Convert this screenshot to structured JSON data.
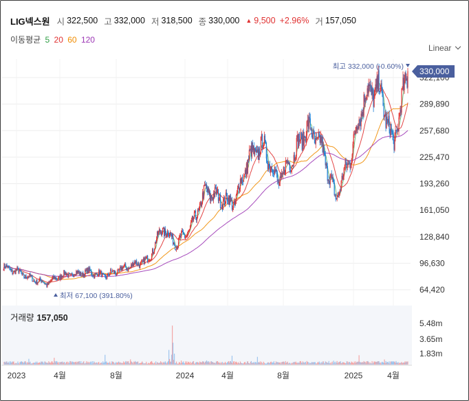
{
  "header": {
    "name": "LIG넥스원",
    "open_label": "시",
    "open": "322,500",
    "high_label": "고",
    "high": "332,000",
    "low_label": "저",
    "low": "318,500",
    "close_label": "종",
    "close": "330,000",
    "change_arrow": "▲",
    "change": "9,500",
    "change_pct": "+2.96%",
    "volume_label": "거",
    "volume": "157,050"
  },
  "moving_average": {
    "label": "이동평균",
    "periods": [
      {
        "period": "5",
        "color": "#2f9e44"
      },
      {
        "period": "20",
        "color": "#e03131"
      },
      {
        "period": "60",
        "color": "#f08c00"
      },
      {
        "period": "120",
        "color": "#9c36b5"
      }
    ]
  },
  "scale_selector": {
    "value": "Linear"
  },
  "price_axis": {
    "ticks": [
      "322,100",
      "289,890",
      "257,680",
      "225,470",
      "193,260",
      "161,050",
      "128,840",
      "96,630",
      "64,420"
    ],
    "current_price": "330,000",
    "current_color": "#4a5f9e"
  },
  "annotations": {
    "high": "최고 332,000 (-0.60%)",
    "low": "최저 67,100 (391.80%)"
  },
  "volume_panel": {
    "title": "거래량",
    "value": "157,050",
    "ticks": [
      "5.48m",
      "3.65m",
      "1.83m"
    ]
  },
  "time_axis": {
    "labels": [
      "2023",
      "4월",
      "8월",
      "2024",
      "4월",
      "8월",
      "2025",
      "4월"
    ]
  },
  "colors": {
    "up": "#e03131",
    "down": "#1c7ed6",
    "grid": "#ededed",
    "volume_panel_bg": "#f4f6fa"
  },
  "chart_data": {
    "type": "candlestick",
    "y_axis_ticks": [
      322100,
      289890,
      257680,
      225470,
      193260,
      161050,
      128840,
      96630,
      64420
    ],
    "ylim": [
      50000,
      345000
    ],
    "price_path": [
      [
        "2023-01",
        92000
      ],
      [
        "2023-02",
        86000
      ],
      [
        "2023-03",
        77000
      ],
      [
        "2023-04",
        72000
      ],
      [
        "2023-05",
        82000
      ],
      [
        "2023-06",
        84000
      ],
      [
        "2023-07",
        86000
      ],
      [
        "2023-08",
        81000
      ],
      [
        "2023-09",
        88000
      ],
      [
        "2023-10",
        95000
      ],
      [
        "2023-11",
        100000
      ],
      [
        "2023-12",
        140000
      ],
      [
        "2024-01",
        120000
      ],
      [
        "2024-02",
        140000
      ],
      [
        "2024-03",
        185000
      ],
      [
        "2024-04",
        175000
      ],
      [
        "2024-05",
        170000
      ],
      [
        "2024-06",
        225000
      ],
      [
        "2024-07",
        240000
      ],
      [
        "2024-08",
        195000
      ],
      [
        "2024-09",
        225000
      ],
      [
        "2024-10",
        262000
      ],
      [
        "2024-11",
        240000
      ],
      [
        "2024-12",
        175000
      ],
      [
        "2025-01",
        225000
      ],
      [
        "2025-02",
        300000
      ],
      [
        "2025-03",
        310000
      ],
      [
        "2025-04",
        240000
      ],
      [
        "2025-05",
        330000
      ]
    ],
    "high": {
      "value": 332000,
      "label": "최고 332,000 (-0.60%)"
    },
    "low": {
      "value": 67100,
      "label": "최저 67,100 (391.80%)"
    },
    "last_close": 330000,
    "volume_ticks": [
      "5.48m",
      "3.65m",
      "1.83m"
    ],
    "volume_max": 5480000,
    "moving_averages": [
      "5",
      "20",
      "60",
      "120"
    ]
  }
}
